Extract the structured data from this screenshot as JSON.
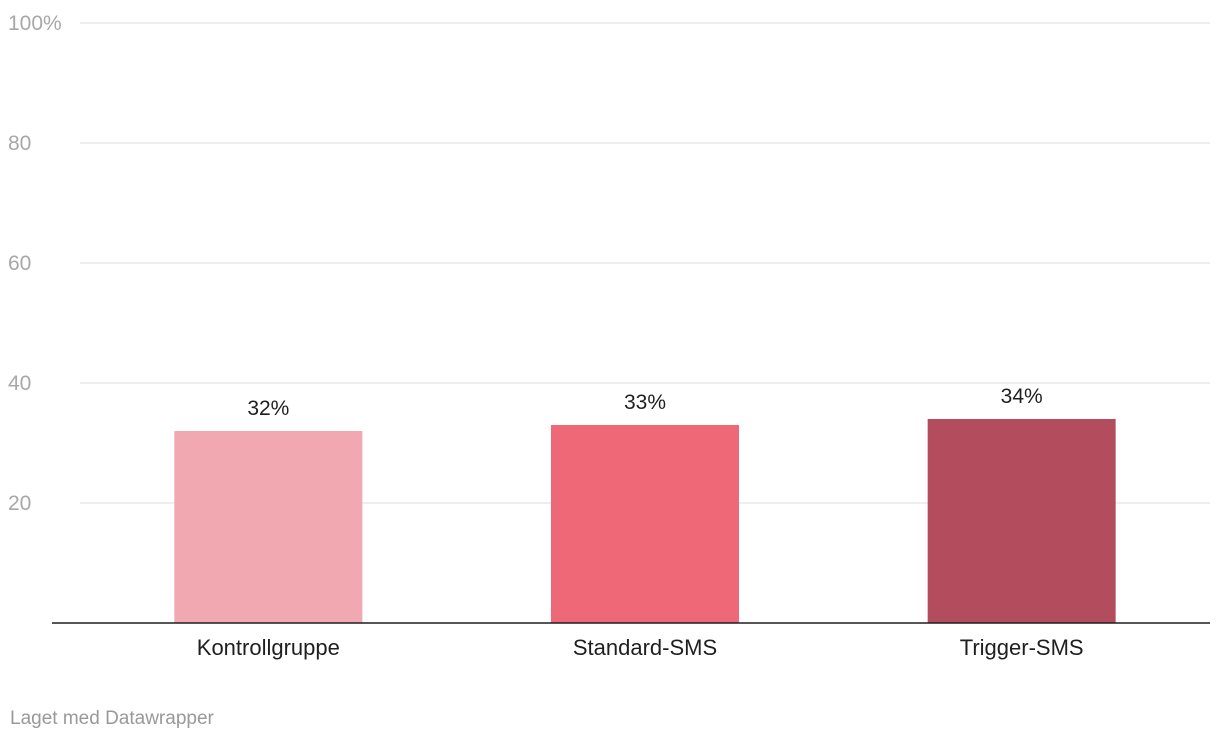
{
  "chart_data": {
    "type": "bar",
    "categories": [
      "Kontrollgruppe",
      "Standard-SMS",
      "Trigger-SMS"
    ],
    "values": [
      32,
      33,
      34
    ],
    "value_labels": [
      "32%",
      "33%",
      "34%"
    ],
    "colors": [
      "#f2a8b0",
      "#ef6878",
      "#b34d5d"
    ],
    "yticks": [
      {
        "value": 100,
        "label": "100%"
      },
      {
        "value": 80,
        "label": "80"
      },
      {
        "value": 60,
        "label": "60"
      },
      {
        "value": 40,
        "label": "40"
      },
      {
        "value": 20,
        "label": "20"
      }
    ],
    "ylim": [
      0,
      100
    ],
    "grid": true,
    "title": "",
    "xlabel": "",
    "ylabel": ""
  },
  "footer": {
    "credit": "Laget med Datawrapper"
  },
  "colors": {
    "grid": "#e3e3e3",
    "axis": "#1f1f1f",
    "tick_text": "#a8a8a8",
    "label_text": "#1f1f1f"
  }
}
